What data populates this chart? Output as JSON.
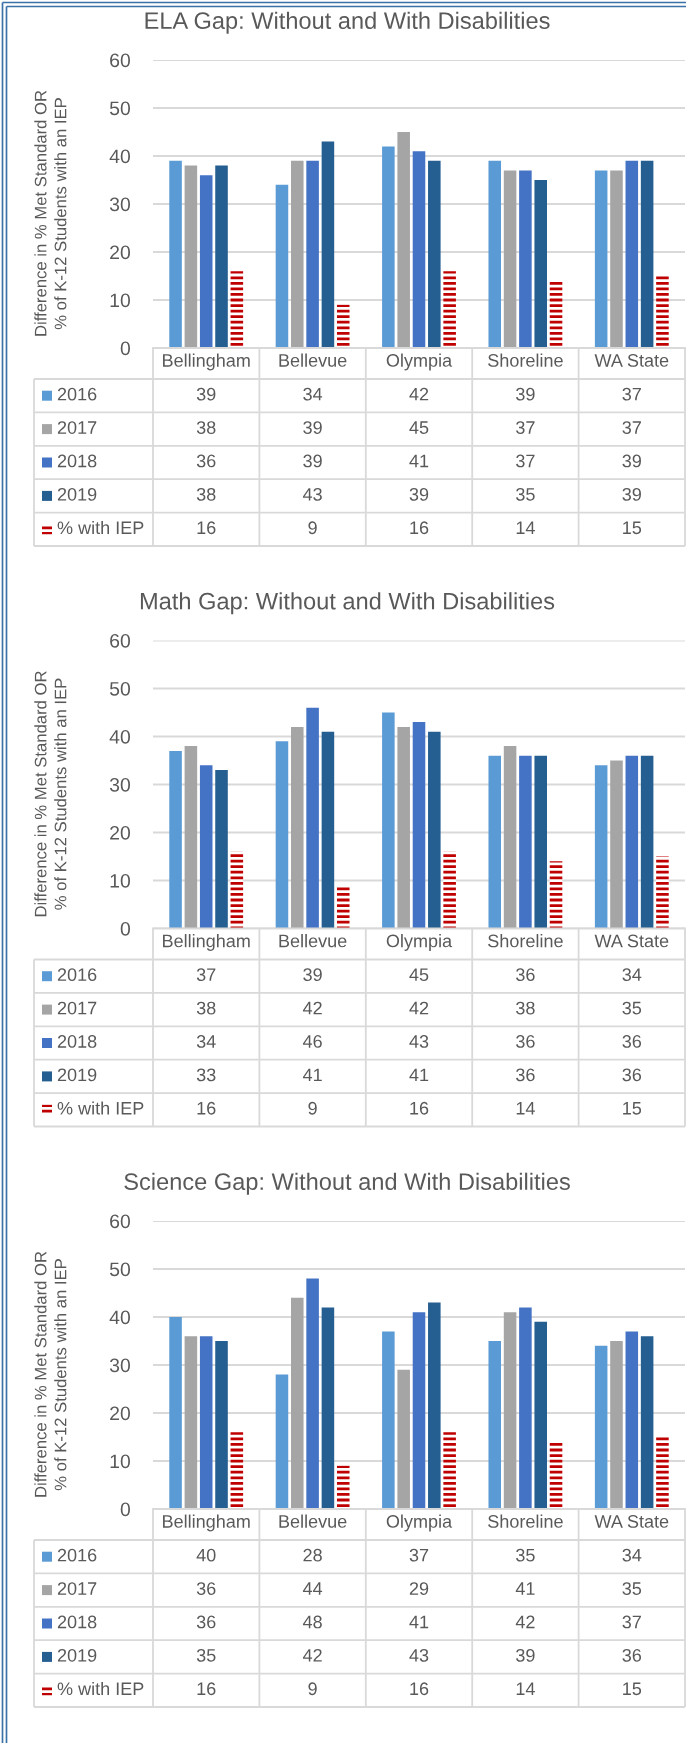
{
  "chart_data": [
    {
      "type": "bar",
      "title": "ELA Gap: Without and With Disabilities",
      "ylabel": "Difference in % Met Standard OR\n% of K-12 Students with an IEP",
      "categories": [
        "Bellingham",
        "Bellevue",
        "Olympia",
        "Shoreline",
        "WA State"
      ],
      "series": [
        {
          "name": "2016",
          "color": "#5b9bd5",
          "values": [
            39,
            34,
            42,
            39,
            37
          ]
        },
        {
          "name": "2017",
          "color": "#a5a5a5",
          "values": [
            38,
            39,
            45,
            37,
            37
          ]
        },
        {
          "name": "2018",
          "color": "#4472c4",
          "values": [
            36,
            39,
            41,
            37,
            39
          ]
        },
        {
          "name": "2019",
          "color": "#255e91",
          "values": [
            38,
            43,
            39,
            35,
            39
          ]
        },
        {
          "name": "% with IEP",
          "color": "#c00000",
          "line_style": "dashed",
          "values": [
            16,
            9,
            16,
            14,
            15
          ]
        }
      ],
      "ylim": [
        0,
        60
      ],
      "yticks": [
        0,
        10,
        20,
        30,
        40,
        50,
        60
      ],
      "grid": "y",
      "data_labels": true,
      "legend": "bottom"
    },
    {
      "type": "bar",
      "title": "Math Gap: Without and With Disabilities",
      "ylabel": "Difference in % Met Standard OR\n% of K-12 Students with an IEP",
      "categories": [
        "Bellingham",
        "Bellevue",
        "Olympia",
        "Shoreline",
        "WA State"
      ],
      "series": [
        {
          "name": "2016",
          "color": "#5b9bd5",
          "values": [
            37,
            39,
            45,
            36,
            34
          ]
        },
        {
          "name": "2017",
          "color": "#a5a5a5",
          "values": [
            38,
            42,
            42,
            38,
            35
          ]
        },
        {
          "name": "2018",
          "color": "#4472c4",
          "values": [
            34,
            46,
            43,
            36,
            36
          ]
        },
        {
          "name": "2019",
          "color": "#255e91",
          "values": [
            33,
            41,
            41,
            36,
            36
          ]
        },
        {
          "name": "% with IEP",
          "color": "#c00000",
          "line_style": "dashed",
          "values": [
            16,
            9,
            16,
            14,
            15
          ]
        }
      ],
      "ylim": [
        0,
        60
      ],
      "yticks": [
        0,
        10,
        20,
        30,
        40,
        50,
        60
      ],
      "grid": "y",
      "data_labels": true,
      "legend": "bottom"
    },
    {
      "type": "bar",
      "title": "Science Gap: Without and With Disabilities",
      "ylabel": "Difference in % Met Standard OR\n% of K-12 Students with an IEP",
      "categories": [
        "Bellingham",
        "Bellevue",
        "Olympia",
        "Shoreline",
        "WA State"
      ],
      "series": [
        {
          "name": "2016",
          "color": "#5b9bd5",
          "values": [
            40,
            28,
            37,
            35,
            34
          ]
        },
        {
          "name": "2017",
          "color": "#a5a5a5",
          "values": [
            36,
            44,
            29,
            41,
            35
          ]
        },
        {
          "name": "2018",
          "color": "#4472c4",
          "values": [
            36,
            48,
            41,
            42,
            37
          ]
        },
        {
          "name": "2019",
          "color": "#255e91",
          "values": [
            35,
            42,
            43,
            39,
            36
          ]
        },
        {
          "name": "% with IEP",
          "color": "#c00000",
          "line_style": "dashed",
          "values": [
            16,
            9,
            16,
            14,
            15
          ]
        }
      ],
      "ylim": [
        0,
        60
      ],
      "yticks": [
        0,
        10,
        20,
        30,
        40,
        50,
        60
      ],
      "grid": "y",
      "data_labels": true,
      "legend": "bottom"
    }
  ]
}
